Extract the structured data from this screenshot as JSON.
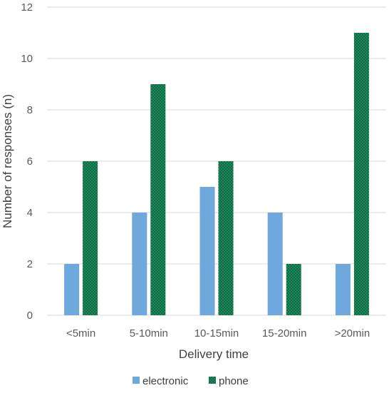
{
  "chart_data": {
    "type": "bar",
    "title": "",
    "xlabel": "Delivery time",
    "ylabel": "Number of responses (n)",
    "ylim": [
      0,
      12
    ],
    "yticks": [
      0,
      2,
      4,
      6,
      8,
      10,
      12
    ],
    "categories": [
      "<5min",
      "5-10min",
      "10-15min",
      "15-20min",
      ">20min"
    ],
    "series": [
      {
        "name": "electronic",
        "values": [
          2,
          4,
          5,
          4,
          2
        ],
        "color": "#6fa8dc",
        "pattern": "solid"
      },
      {
        "name": "phone",
        "values": [
          6,
          9,
          6,
          2,
          11
        ],
        "color": "#1a8a5a",
        "pattern": "dotted"
      }
    ],
    "grid": true,
    "legend_position": "bottom"
  }
}
